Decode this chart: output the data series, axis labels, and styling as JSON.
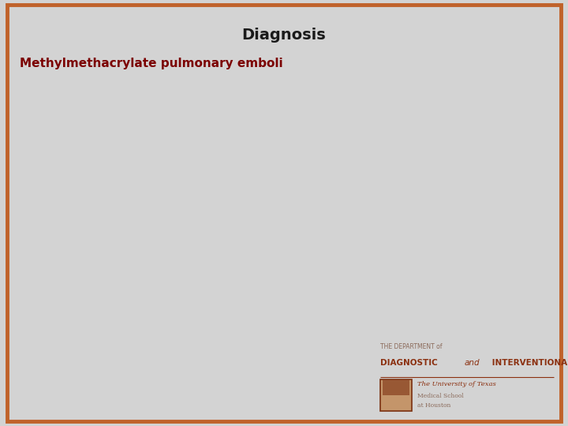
{
  "title": "Diagnosis",
  "title_fontsize": 14,
  "title_color": "#1a1a1a",
  "title_fontweight": "bold",
  "diagnosis_text": "Methylmethacrylate pulmonary emboli",
  "diagnosis_color": "#7B0000",
  "diagnosis_fontsize": 11,
  "diagnosis_fontweight": "bold",
  "background_color": "#D3D3D3",
  "border_color": "#C0622A",
  "border_linewidth": 3.5,
  "logo_line1": "THE DEPARTMENT of",
  "logo_line2_a": "DIAGNOSTIC ",
  "logo_line2_b": "and",
  "logo_line2_c": " INTERVENTIONAL IMAGING",
  "logo_line3": "The University of Texas",
  "logo_line4": "Medical School",
  "logo_line5": "at Houston",
  "logo_color_small": "#8B6A5A",
  "logo_color_large": "#8B3010",
  "shield_face": "#C4956A",
  "shield_edge": "#7B3010",
  "fig_width": 7.2,
  "fig_height": 5.4,
  "dpi": 100
}
